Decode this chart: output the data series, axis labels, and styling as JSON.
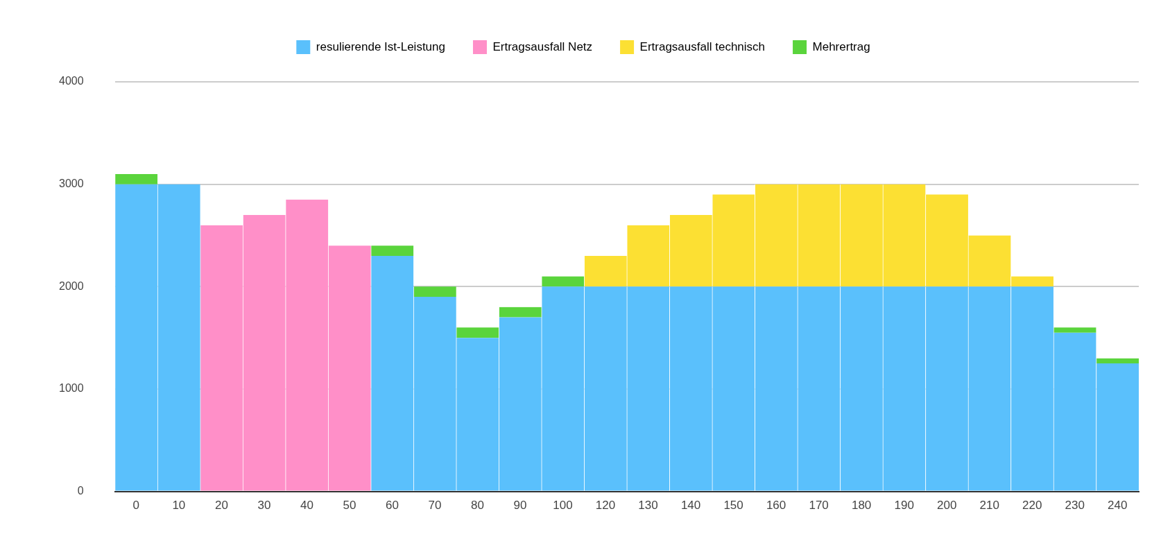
{
  "chart_data": {
    "type": "bar",
    "stacked": true,
    "legend": "top",
    "grid": "y",
    "categories": [
      "0",
      "10",
      "20",
      "30",
      "40",
      "50",
      "60",
      "70",
      "80",
      "90",
      "100",
      "120",
      "130",
      "140",
      "150",
      "160",
      "170",
      "180",
      "190",
      "200",
      "210",
      "220",
      "230",
      "240"
    ],
    "ylim": [
      0,
      4000
    ],
    "yticks": [
      0,
      1000,
      2000,
      3000,
      4000
    ],
    "series": [
      {
        "name": "resulierende Ist-Leistung",
        "color": "#5ac0fc",
        "values": [
          3000,
          3000,
          null,
          null,
          null,
          null,
          2300,
          1900,
          1500,
          1700,
          2000,
          2000,
          2000,
          2000,
          2000,
          2000,
          2000,
          2000,
          2000,
          2000,
          2000,
          2000,
          1550,
          1250
        ]
      },
      {
        "name": "Ertragsausfall Netz",
        "color": "#ff8fc8",
        "values": [
          null,
          null,
          2600,
          2700,
          2850,
          2400,
          null,
          null,
          null,
          null,
          null,
          null,
          null,
          null,
          null,
          null,
          null,
          null,
          null,
          null,
          null,
          null,
          null,
          null
        ]
      },
      {
        "name": "Ertragsausfall technisch",
        "color": "#fce033",
        "values": [
          null,
          null,
          null,
          null,
          null,
          null,
          null,
          null,
          null,
          null,
          null,
          300,
          600,
          700,
          900,
          1000,
          1000,
          1000,
          1000,
          900,
          500,
          100,
          null,
          null
        ]
      },
      {
        "name": "Mehrertrag",
        "color": "#5ad43c",
        "values": [
          100,
          null,
          null,
          null,
          null,
          null,
          100,
          100,
          100,
          100,
          100,
          null,
          null,
          null,
          null,
          null,
          null,
          null,
          null,
          null,
          null,
          null,
          50,
          50
        ]
      }
    ]
  }
}
